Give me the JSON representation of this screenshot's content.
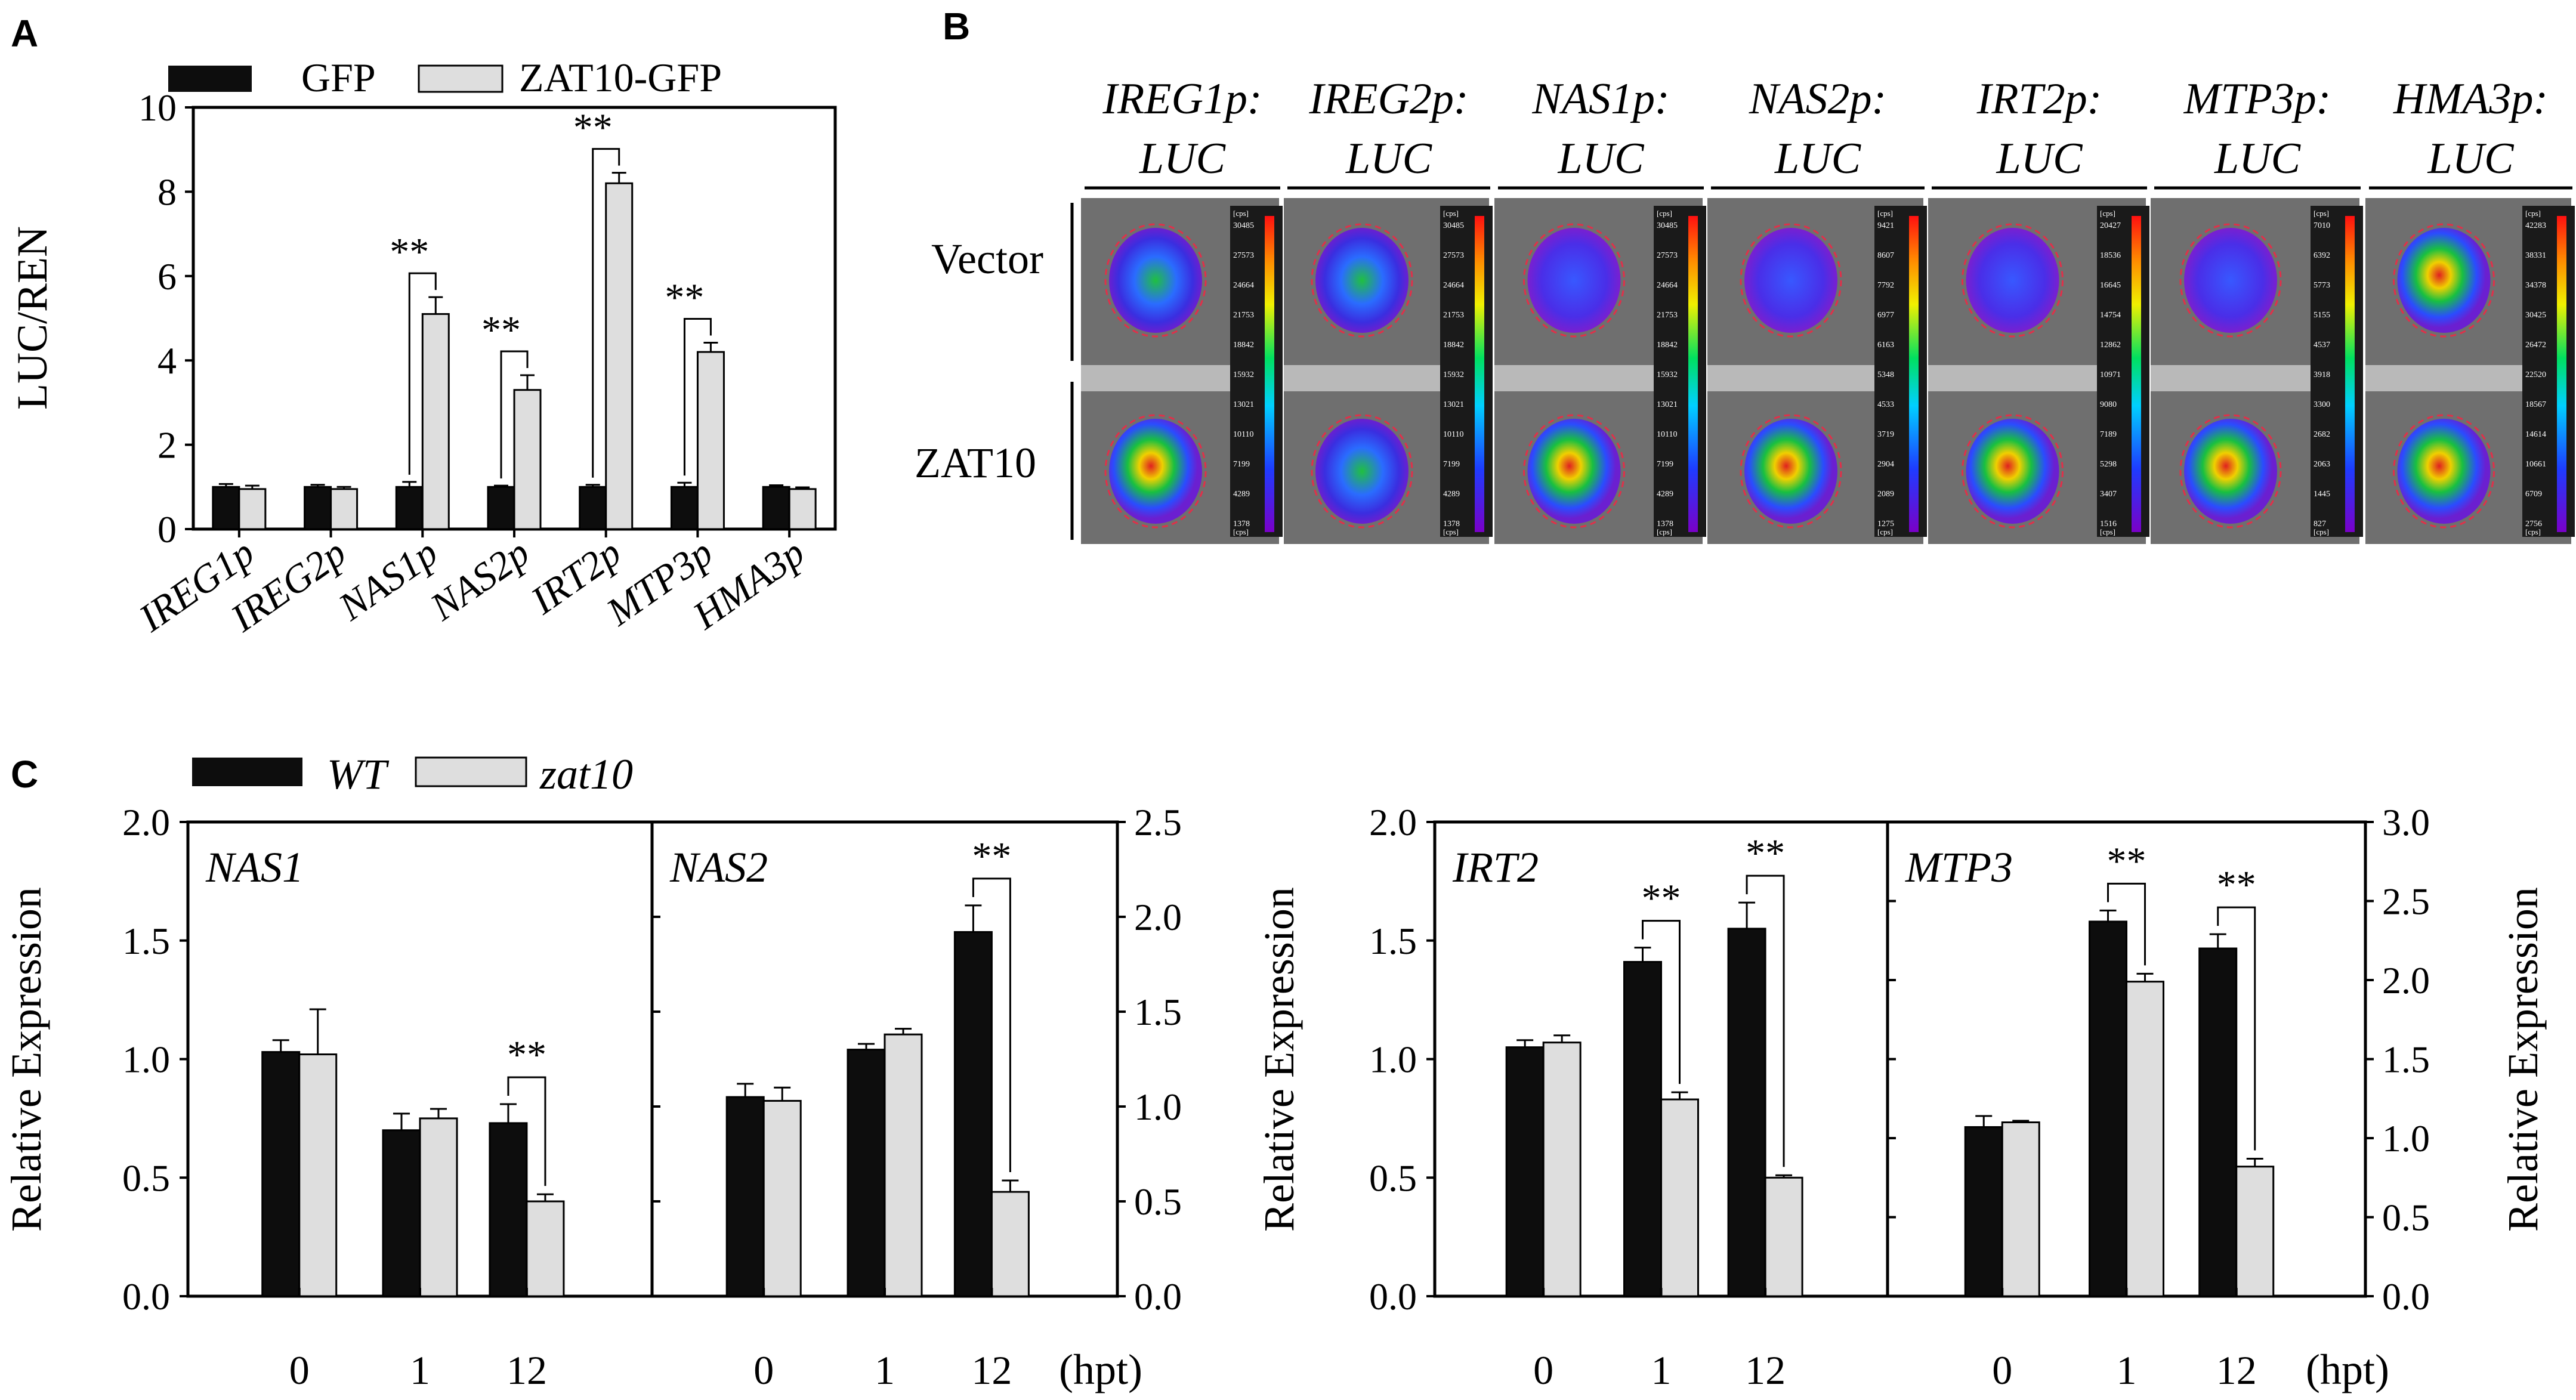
{
  "figure": {
    "panel_labels": {
      "a": "A",
      "b": "B",
      "c": "C"
    }
  },
  "colors": {
    "series_dark": "#0d0d0d",
    "series_light": "#dedede",
    "axis": "#000000",
    "sig": "#000000",
    "imaging_circle": "#e0304a",
    "leaf_bg": "#6f6f6f"
  },
  "chart_data": [
    {
      "id": "A",
      "type": "bar",
      "legend": [
        "GFP",
        "ZAT10-GFP"
      ],
      "categories": [
        "IREG1p",
        "IREG2p",
        "NAS1p",
        "NAS2p",
        "IRT2p",
        "MTP3p",
        "HMA3p"
      ],
      "series": [
        {
          "name": "GFP",
          "values": [
            1.0,
            1.0,
            1.0,
            1.0,
            1.0,
            1.0,
            1.0
          ],
          "errors": [
            0.07,
            0.05,
            0.12,
            0.03,
            0.05,
            0.1,
            0.04
          ]
        },
        {
          "name": "ZAT10-GFP",
          "values": [
            0.95,
            0.95,
            5.1,
            3.3,
            8.2,
            4.2,
            0.95
          ],
          "errors": [
            0.08,
            0.05,
            0.4,
            0.35,
            0.25,
            0.22,
            0.04
          ]
        }
      ],
      "significance": [
        {
          "category": "NAS1p",
          "label": "**"
        },
        {
          "category": "NAS2p",
          "label": "**"
        },
        {
          "category": "IRT2p",
          "label": "**"
        },
        {
          "category": "MTP3p",
          "label": "**"
        }
      ],
      "ylabel": "LUC/REN",
      "ylim": [
        0,
        10
      ],
      "yticks": [
        "0",
        "2",
        "4",
        "6",
        "8",
        "10"
      ]
    },
    {
      "id": "C",
      "type": "bar",
      "legend": [
        "WT",
        "zat10"
      ],
      "xlabel_unit": "(hpt)",
      "categories": [
        "0",
        "1",
        "12"
      ],
      "ylabel": "Relative Expression",
      "groups": [
        {
          "name": "NAS1",
          "axis": "left",
          "ylim": [
            0,
            2.0
          ],
          "yticks": [
            "0.0",
            "0.5",
            "1.0",
            "1.5",
            "2.0"
          ],
          "series": [
            {
              "name": "WT",
              "values": [
                1.03,
                0.7,
                0.73
              ],
              "errors": [
                0.05,
                0.07,
                0.08
              ]
            },
            {
              "name": "zat10",
              "values": [
                1.02,
                0.75,
                0.4
              ],
              "errors": [
                0.19,
                0.04,
                0.03
              ]
            }
          ],
          "significance": [
            {
              "category": "12",
              "label": "**"
            }
          ]
        },
        {
          "name": "NAS2",
          "axis": "right",
          "ylim": [
            0,
            2.5
          ],
          "yticks": [
            "0.0",
            "0.5",
            "1.0",
            "1.5",
            "2.0",
            "2.5"
          ],
          "series": [
            {
              "name": "WT",
              "values": [
                1.05,
                1.3,
                1.92
              ],
              "errors": [
                0.07,
                0.03,
                0.14
              ]
            },
            {
              "name": "zat10",
              "values": [
                1.03,
                1.38,
                0.55
              ],
              "errors": [
                0.07,
                0.03,
                0.06
              ]
            }
          ],
          "significance": [
            {
              "category": "12",
              "label": "**"
            }
          ]
        },
        {
          "name": "IRT2",
          "axis": "left",
          "ylim": [
            0,
            2.0
          ],
          "yticks": [
            "0.0",
            "0.5",
            "1.0",
            "1.5",
            "2.0"
          ],
          "series": [
            {
              "name": "WT",
              "values": [
                1.05,
                1.41,
                1.55
              ],
              "errors": [
                0.03,
                0.06,
                0.11
              ]
            },
            {
              "name": "zat10",
              "values": [
                1.07,
                0.83,
                0.5
              ],
              "errors": [
                0.03,
                0.03,
                0.01
              ]
            }
          ],
          "significance": [
            {
              "category": "1",
              "label": "**"
            },
            {
              "category": "12",
              "label": "**"
            }
          ]
        },
        {
          "name": "MTP3",
          "axis": "right",
          "ylim": [
            0,
            3.0
          ],
          "yticks": [
            "0.0",
            "0.5",
            "1.0",
            "1.5",
            "2.0",
            "2.5",
            "3.0"
          ],
          "series": [
            {
              "name": "WT",
              "values": [
                1.07,
                2.37,
                2.2
              ],
              "errors": [
                0.07,
                0.07,
                0.09
              ]
            },
            {
              "name": "zat10",
              "values": [
                1.1,
                1.99,
                0.82
              ],
              "errors": [
                0.01,
                0.05,
                0.05
              ]
            }
          ],
          "significance": [
            {
              "category": "1",
              "label": "**"
            },
            {
              "category": "12",
              "label": "**"
            }
          ]
        }
      ]
    }
  ],
  "panel_b": {
    "constructs": [
      {
        "line1": "IREG1p:",
        "line2": "LUC",
        "scale": [
          "30485",
          "27573",
          "24664",
          "21753",
          "18842",
          "15932",
          "13021",
          "10110",
          "7199",
          "4289",
          "1378"
        ]
      },
      {
        "line1": "IREG2p:",
        "line2": "LUC",
        "scale": [
          "30485",
          "27573",
          "24664",
          "21753",
          "18842",
          "15932",
          "13021",
          "10110",
          "7199",
          "4289",
          "1378"
        ]
      },
      {
        "line1": "NAS1p:",
        "line2": "LUC",
        "scale": [
          "30485",
          "27573",
          "24664",
          "21753",
          "18842",
          "15932",
          "13021",
          "10110",
          "7199",
          "4289",
          "1378"
        ]
      },
      {
        "line1": "NAS2p:",
        "line2": "LUC",
        "scale": [
          "9421",
          "8607",
          "7792",
          "6977",
          "6163",
          "5348",
          "4533",
          "3719",
          "2904",
          "2089",
          "1275"
        ]
      },
      {
        "line1": "IRT2p:",
        "line2": "LUC",
        "scale": [
          "20427",
          "18536",
          "16645",
          "14754",
          "12862",
          "10971",
          "9080",
          "7189",
          "5298",
          "3407",
          "1516"
        ]
      },
      {
        "line1": "MTP3p:",
        "line2": "LUC",
        "scale": [
          "7010",
          "6392",
          "5773",
          "5155",
          "4537",
          "3918",
          "3300",
          "2682",
          "2063",
          "1445",
          "827"
        ]
      },
      {
        "line1": "HMA3p:",
        "line2": "LUC",
        "scale": [
          "42283",
          "38331",
          "34378",
          "30425",
          "26472",
          "22520",
          "18567",
          "14614",
          "10661",
          "6709",
          "2756"
        ]
      }
    ],
    "scale_unit": "[cps]",
    "row_labels": [
      "Vector",
      "ZAT10"
    ]
  }
}
